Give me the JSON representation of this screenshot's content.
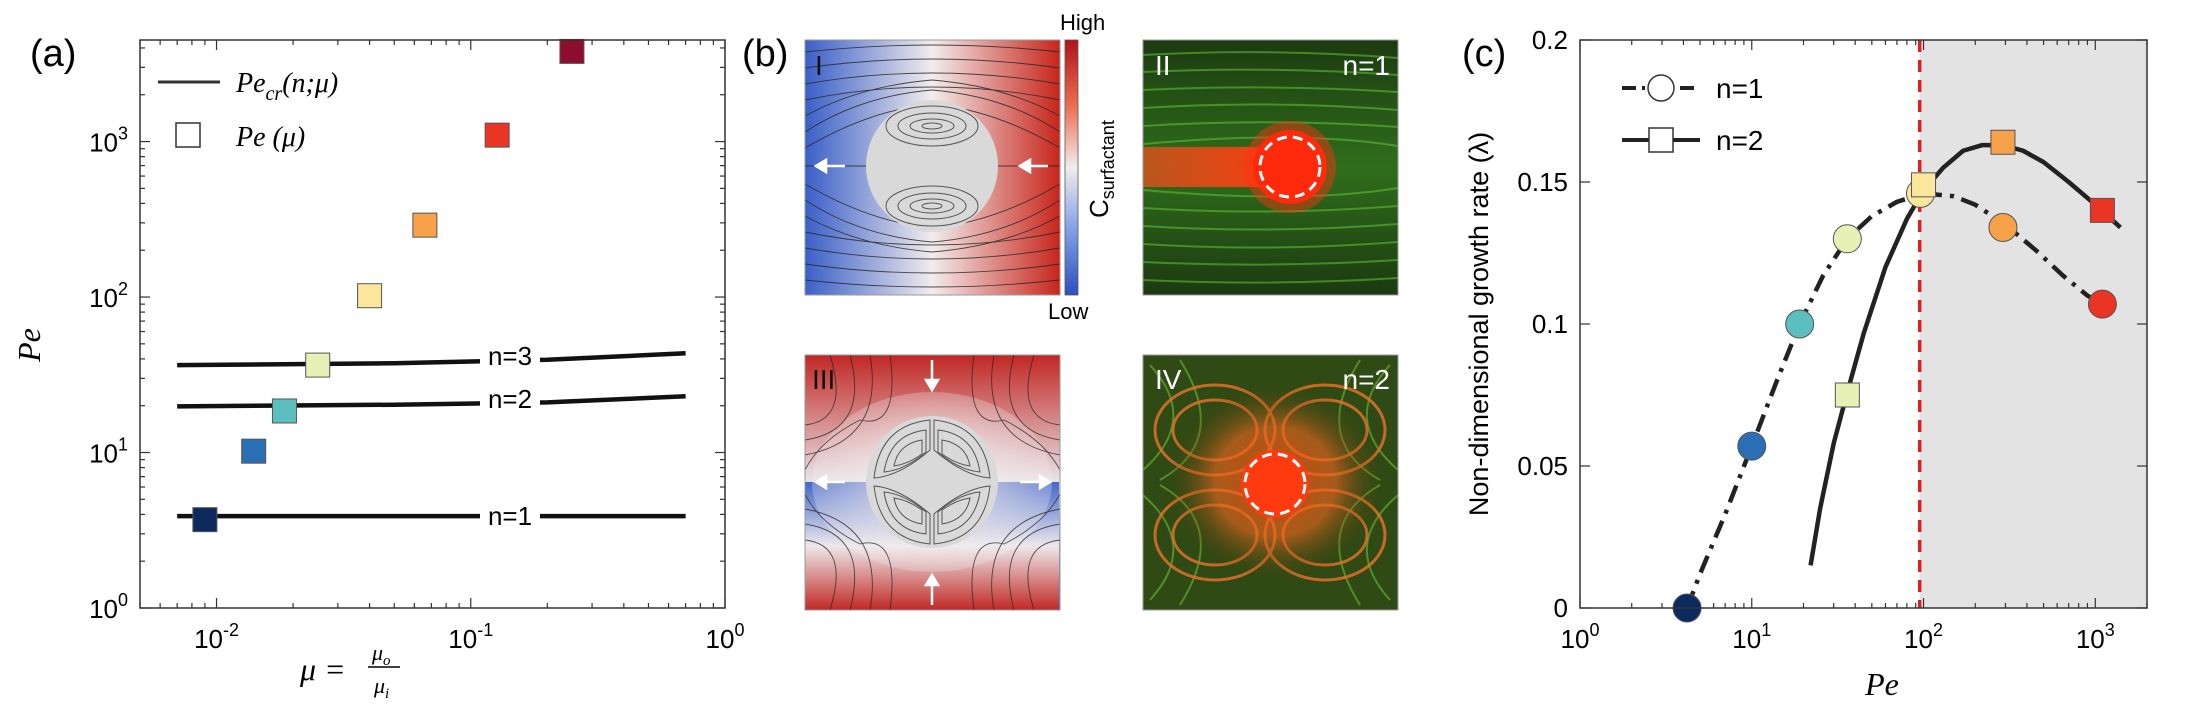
{
  "panel_labels": {
    "a": "(a)",
    "b": "(b)",
    "c": "(c)"
  },
  "colors": {
    "navy": "#0d2a5e",
    "blue": "#2a6fb3",
    "teal": "#5cbfbf",
    "pale_green": "#e7f0b5",
    "pale_yellow": "#fbe79c",
    "orange": "#f7a24a",
    "red": "#ea3424",
    "dark_red": "#8e0c2c",
    "grey_region": "#e3e3e3",
    "dashed_line": "#e02020"
  },
  "panel_b": {
    "colorbar_high": "High",
    "colorbar_low": "Low",
    "colorbar_label": "C",
    "colorbar_label_sub": "surfactant",
    "tile_I": "I",
    "tile_II": "II",
    "tile_III": "III",
    "tile_IV": "IV",
    "tile_II_mode": "n=1",
    "tile_IV_mode": "n=2"
  },
  "chart_data": [
    {
      "id": "a",
      "type": "scatter",
      "xscale": "log",
      "yscale": "log",
      "xlim": [
        0.005,
        1
      ],
      "ylim": [
        1,
        4500
      ],
      "xlabel": "μ = μo/μi",
      "ylabel": "Pe",
      "xtick_labels": [
        "10-2",
        "10-1",
        "100"
      ],
      "ytick_labels": [
        "100",
        "101",
        "102",
        "103"
      ],
      "legend": {
        "line_label": "Pecr(n;μ)",
        "marker_label": "Pe (μ)"
      },
      "lines": [
        {
          "name": "n=1",
          "x": [
            0.007,
            0.7
          ],
          "y": [
            3.9,
            3.9
          ]
        },
        {
          "name": "n=2",
          "x": [
            0.007,
            0.05,
            0.2,
            0.7
          ],
          "y": [
            19.8,
            20.3,
            21.0,
            23.0
          ]
        },
        {
          "name": "n=3",
          "x": [
            0.007,
            0.05,
            0.2,
            0.7
          ],
          "y": [
            36.5,
            37.5,
            39.5,
            43.5
          ]
        }
      ],
      "points": [
        {
          "x": 0.009,
          "y": 3.7,
          "color": "#0d2a5e"
        },
        {
          "x": 0.014,
          "y": 10.2,
          "color": "#2a6fb3"
        },
        {
          "x": 0.0185,
          "y": 18.5,
          "color": "#5cbfbf"
        },
        {
          "x": 0.025,
          "y": 36.5,
          "color": "#e7f0b5"
        },
        {
          "x": 0.04,
          "y": 102,
          "color": "#fbe79c"
        },
        {
          "x": 0.066,
          "y": 290,
          "color": "#f7a24a"
        },
        {
          "x": 0.127,
          "y": 1100,
          "color": "#ea3424"
        },
        {
          "x": 0.25,
          "y": 3800,
          "color": "#8e0c2c"
        }
      ]
    },
    {
      "id": "c",
      "type": "line",
      "xscale": "log",
      "xlim": [
        1,
        2000
      ],
      "ylim": [
        0,
        0.2
      ],
      "xlabel": "Pe",
      "ylabel": "Non-dimensional growth rate (λ)",
      "xtick_labels": [
        "100",
        "101",
        "102",
        "103"
      ],
      "ytick_labels": [
        "0",
        "0.05",
        "0.1",
        "0.15",
        "0.2"
      ],
      "critical_pe": 95,
      "series": [
        {
          "name": "n=1",
          "style": "dashdot",
          "marker": "circle",
          "curve_x": [
            4.2,
            5,
            7,
            10,
            14,
            19,
            26,
            36,
            50,
            70,
            100,
            150,
            200,
            300,
            450,
            650,
            900,
            1100
          ],
          "curve_y": [
            0.0,
            0.012,
            0.033,
            0.057,
            0.08,
            0.1,
            0.117,
            0.13,
            0.138,
            0.143,
            0.146,
            0.145,
            0.142,
            0.135,
            0.126,
            0.117,
            0.11,
            0.107
          ],
          "points": [
            {
              "x": 4.2,
              "y": 0.0,
              "color": "#0d2a5e"
            },
            {
              "x": 10,
              "y": 0.057,
              "color": "#2a6fb3"
            },
            {
              "x": 19,
              "y": 0.1,
              "color": "#5cbfbf"
            },
            {
              "x": 36,
              "y": 0.13,
              "color": "#e7f0b5"
            },
            {
              "x": 96,
              "y": 0.146,
              "color": "#fbe79c"
            },
            {
              "x": 290,
              "y": 0.134,
              "color": "#f7a24a"
            },
            {
              "x": 1100,
              "y": 0.107,
              "color": "#ea3424"
            }
          ]
        },
        {
          "name": "n=2",
          "style": "solid",
          "marker": "square",
          "curve_x": [
            22,
            25,
            30,
            36,
            45,
            60,
            80,
            100,
            130,
            170,
            220,
            290,
            380,
            500,
            700,
            1000,
            1400
          ],
          "curve_y": [
            0.015,
            0.035,
            0.058,
            0.076,
            0.097,
            0.12,
            0.137,
            0.147,
            0.155,
            0.161,
            0.163,
            0.163,
            0.161,
            0.157,
            0.15,
            0.142,
            0.134
          ],
          "points": [
            {
              "x": 36,
              "y": 0.075,
              "color": "#e7f0b5"
            },
            {
              "x": 100,
              "y": 0.149,
              "color": "#fbe79c"
            },
            {
              "x": 290,
              "y": 0.164,
              "color": "#f7a24a"
            },
            {
              "x": 1100,
              "y": 0.14,
              "color": "#ea3424"
            }
          ]
        }
      ]
    }
  ]
}
